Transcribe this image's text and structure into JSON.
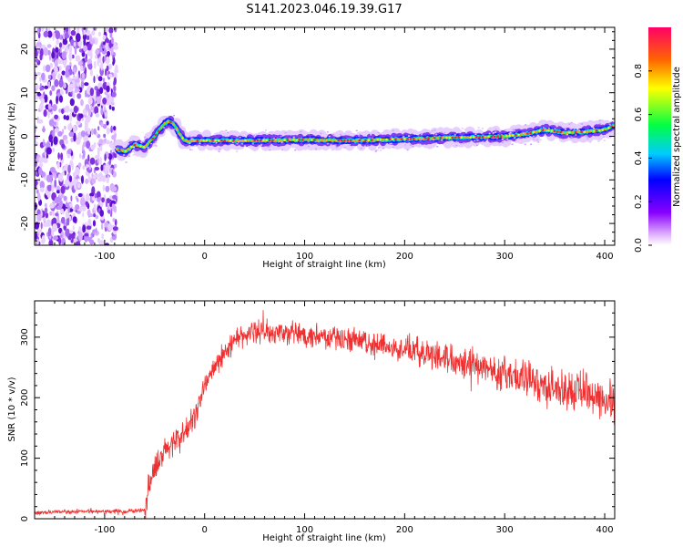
{
  "title": "S141.2023.046.19.39.G17",
  "chart_data": [
    {
      "type": "heatmap",
      "xlabel": "Height of straight line (km)",
      "ylabel": "Frequency (Hz)",
      "xlim": [
        -170,
        410
      ],
      "ylim": [
        -25,
        25
      ],
      "x_ticks": [
        "-100",
        "0",
        "100",
        "200",
        "300",
        "400"
      ],
      "y_ticks": [
        "-20",
        "-10",
        "0",
        "10",
        "20"
      ],
      "colorbar": {
        "label": "Normalized spectral amplitude",
        "range": [
          0,
          1
        ],
        "ticks": [
          "0.0",
          "0.2",
          "0.4",
          "0.6",
          "0.8"
        ]
      },
      "noise_region_x": [
        -170,
        -88
      ],
      "ridge_x": [
        -88,
        -80,
        -70,
        -60,
        -50,
        -45,
        -40,
        -35,
        -30,
        -25,
        -20,
        -15,
        -10,
        0,
        50,
        100,
        150,
        200,
        250,
        300,
        320,
        340,
        360,
        380,
        400,
        410
      ],
      "ridge_freq": [
        -3,
        -3.5,
        -2,
        -2.5,
        0,
        1.5,
        3,
        3.5,
        2.5,
        0.5,
        -1,
        -1.2,
        -1,
        -1,
        -1,
        -0.8,
        -1,
        -0.6,
        -0.3,
        0,
        0.5,
        1.5,
        0.8,
        1,
        1.5,
        2.5
      ]
    },
    {
      "type": "line",
      "xlabel": "Height of straight line (km)",
      "ylabel": "SNR (10 * v/v)",
      "xlim": [
        -170,
        410
      ],
      "ylim": [
        0,
        360
      ],
      "x_ticks": [
        "-100",
        "0",
        "100",
        "200",
        "300",
        "400"
      ],
      "y_ticks": [
        "0",
        "100",
        "200",
        "300"
      ],
      "color": "#f03030",
      "series": [
        {
          "x": [
            -170,
            -120,
            -80,
            -60,
            -55,
            -50,
            -40,
            -30,
            -20,
            -10,
            0,
            10,
            20,
            30,
            50,
            100,
            150,
            200,
            250,
            300,
            350,
            400,
            410
          ],
          "y": [
            10,
            12,
            12,
            15,
            60,
            80,
            110,
            130,
            140,
            170,
            220,
            250,
            275,
            295,
            310,
            305,
            295,
            280,
            265,
            240,
            215,
            200,
            190
          ]
        }
      ]
    }
  ]
}
